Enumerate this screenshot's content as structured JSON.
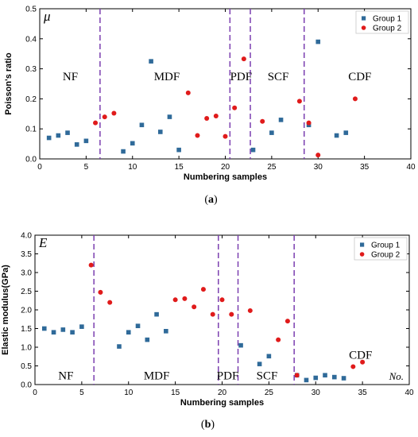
{
  "chart_data": [
    {
      "type": "scatter",
      "id": "a",
      "caption": "(a)",
      "caption_letter": "a",
      "corner_symbol": "μ",
      "xlabel": "Numbering samples",
      "ylabel": "Poisson's ratio",
      "xlim": [
        0,
        40
      ],
      "ylim": [
        0,
        0.5
      ],
      "xticks": [
        0,
        5,
        10,
        15,
        20,
        25,
        30,
        35,
        40
      ],
      "yticks": [
        0.0,
        0.1,
        0.2,
        0.3,
        0.4,
        0.5
      ],
      "ytick_labels": [
        "0.0",
        "0.1",
        "0.2",
        "0.3",
        "0.4",
        "0.5"
      ],
      "legend_position": "top-right",
      "dividers": [
        6.5,
        20.5,
        22.7,
        28.5
      ],
      "regions": [
        {
          "label": "NF",
          "x": 3.3,
          "y": 0.275
        },
        {
          "label": "MDF",
          "x": 13.7,
          "y": 0.275
        },
        {
          "label": "PDF",
          "x": 21.7,
          "y": 0.275
        },
        {
          "label": "SCF",
          "x": 25.7,
          "y": 0.275
        },
        {
          "label": "CDF",
          "x": 34.5,
          "y": 0.275
        }
      ],
      "series": [
        {
          "name": "Group 1",
          "color": "#2f6a99",
          "marker": "square",
          "points": [
            [
              1,
              0.07
            ],
            [
              2,
              0.078
            ],
            [
              3,
              0.087
            ],
            [
              4,
              0.048
            ],
            [
              5,
              0.06
            ],
            [
              9,
              0.025
            ],
            [
              10,
              0.052
            ],
            [
              11,
              0.113
            ],
            [
              12,
              0.325
            ],
            [
              13,
              0.09
            ],
            [
              14,
              0.14
            ],
            [
              15,
              0.03
            ],
            [
              23,
              0.03
            ],
            [
              25,
              0.087
            ],
            [
              26,
              0.13
            ],
            [
              29,
              0.113
            ],
            [
              30,
              0.39
            ],
            [
              32,
              0.078
            ],
            [
              33,
              0.087
            ]
          ]
        },
        {
          "name": "Group 2",
          "color": "#e01b1b",
          "marker": "circle",
          "points": [
            [
              6,
              0.12
            ],
            [
              7,
              0.14
            ],
            [
              8,
              0.152
            ],
            [
              16,
              0.22
            ],
            [
              17,
              0.078
            ],
            [
              18,
              0.135
            ],
            [
              19,
              0.143
            ],
            [
              20,
              0.075
            ],
            [
              21,
              0.17
            ],
            [
              22,
              0.333
            ],
            [
              24,
              0.125
            ],
            [
              28,
              0.192
            ],
            [
              29,
              0.12
            ],
            [
              30,
              0.013
            ],
            [
              34,
              0.2
            ]
          ]
        }
      ]
    },
    {
      "type": "scatter",
      "id": "b",
      "caption": "(b)",
      "caption_letter": "b",
      "corner_symbol": "E",
      "end_label": "No.",
      "xlabel": "Numbering samples",
      "ylabel": "Elastic modulus(GPa)",
      "xlim": [
        0,
        40
      ],
      "ylim": [
        0,
        4
      ],
      "xticks": [
        0,
        5,
        10,
        15,
        20,
        25,
        30,
        35,
        40
      ],
      "yticks": [
        0,
        0.5,
        1,
        1.5,
        2,
        2.5,
        3,
        3.5,
        4
      ],
      "ytick_labels": [
        "0.0",
        "0.5",
        "1.0",
        "1.5",
        "2.0",
        "2.5",
        "3.0",
        "3.5",
        "4.0"
      ],
      "legend_position": "top-right",
      "dividers": [
        6.3,
        19.6,
        21.7,
        27.7
      ],
      "regions": [
        {
          "label": "NF",
          "x": 3.3,
          "y": 0.25
        },
        {
          "label": "MDF",
          "x": 13.0,
          "y": 0.25
        },
        {
          "label": "PDF",
          "x": 20.6,
          "y": 0.25
        },
        {
          "label": "SCF",
          "x": 24.8,
          "y": 0.25
        },
        {
          "label": "CDF",
          "x": 34.8,
          "y": 0.8
        }
      ],
      "series": [
        {
          "name": "Group 1",
          "color": "#2f6a99",
          "marker": "square",
          "points": [
            [
              1,
              1.5
            ],
            [
              2,
              1.4
            ],
            [
              3,
              1.47
            ],
            [
              4,
              1.4
            ],
            [
              5,
              1.55
            ],
            [
              9,
              1.02
            ],
            [
              10,
              1.4
            ],
            [
              11,
              1.57
            ],
            [
              12,
              1.2
            ],
            [
              13,
              1.88
            ],
            [
              14,
              1.43
            ],
            [
              22,
              1.05
            ],
            [
              24,
              0.55
            ],
            [
              25,
              0.76
            ],
            [
              28,
              0.25
            ],
            [
              29,
              0.12
            ],
            [
              30,
              0.18
            ],
            [
              31,
              0.25
            ],
            [
              32,
              0.2
            ],
            [
              33,
              0.17
            ]
          ]
        },
        {
          "name": "Group 2",
          "color": "#e01b1b",
          "marker": "circle",
          "points": [
            [
              6,
              3.2
            ],
            [
              7,
              2.47
            ],
            [
              8,
              2.2
            ],
            [
              15,
              2.27
            ],
            [
              16,
              2.3
            ],
            [
              17,
              2.08
            ],
            [
              18,
              2.55
            ],
            [
              19,
              1.88
            ],
            [
              20,
              2.27
            ],
            [
              21,
              1.88
            ],
            [
              23,
              1.98
            ],
            [
              26,
              1.2
            ],
            [
              27,
              1.7
            ],
            [
              28,
              0.25
            ],
            [
              34,
              0.48
            ],
            [
              35,
              0.6
            ]
          ]
        }
      ]
    }
  ]
}
